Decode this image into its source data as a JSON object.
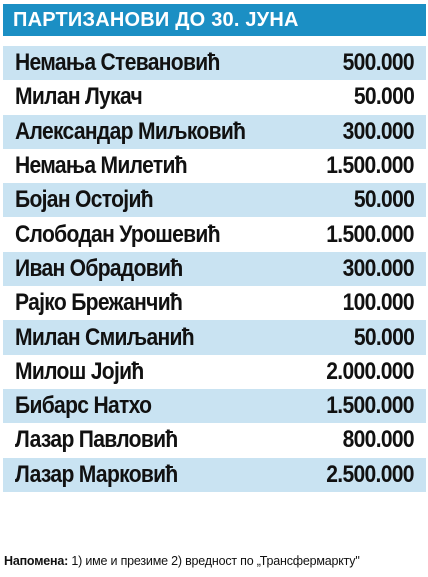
{
  "title": "ПАРТИЗАНОВИ ДО 30. ЈУНА",
  "players": [
    {
      "name": "Немања Стевановић",
      "value": "500.000"
    },
    {
      "name": "Милан Лукач",
      "value": "50.000"
    },
    {
      "name": "Александар Миљковић",
      "value": "300.000"
    },
    {
      "name": "Немања Милетић",
      "value": "1.500.000"
    },
    {
      "name": "Бојан Остојић",
      "value": "50.000"
    },
    {
      "name": "Слободан Урошевић",
      "value": "1.500.000"
    },
    {
      "name": "Иван Обрадовић",
      "value": "300.000"
    },
    {
      "name": "Рајко Брежанчић",
      "value": "100.000"
    },
    {
      "name": "Милан Смиљанић",
      "value": "50.000"
    },
    {
      "name": "Милош Јојић",
      "value": "2.000.000"
    },
    {
      "name": "Бибарс Натхо",
      "value": "1.500.000"
    },
    {
      "name": "Лазар Павловић",
      "value": "800.000"
    },
    {
      "name": "Лазар Марковић",
      "value": "2.500.000"
    }
  ],
  "note": {
    "label": "Напомена:",
    "text": " 1) име и презиме 2) вредност по „Трансфермаркту\""
  },
  "colors": {
    "header_bg": "#1b8fc4",
    "alt_row_bg": "#c9e3f2",
    "text": "#111111"
  }
}
